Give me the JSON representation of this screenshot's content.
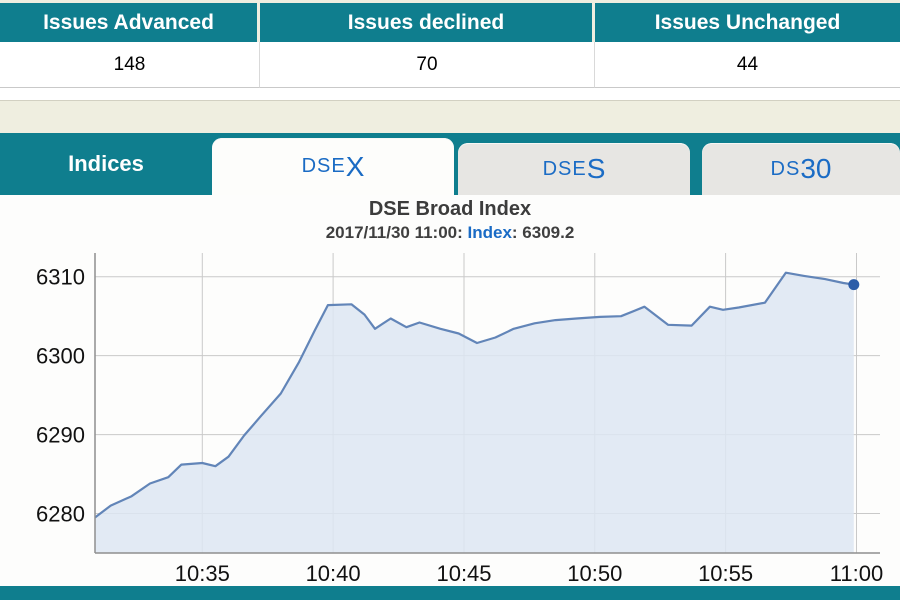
{
  "colors": {
    "teal": "#0f7e8e",
    "page_bg": "#efeee0",
    "tab_text_blue": "#1b6cc5",
    "line_color": "#6285b8",
    "fill_color": "#dde6f2",
    "marker_color": "#2d5da8"
  },
  "stats": {
    "columns": [
      {
        "header": "Issues Advanced",
        "value": "148"
      },
      {
        "header": "Issues declined",
        "value": "70"
      },
      {
        "header": "Issues Unchanged",
        "value": "44"
      }
    ]
  },
  "tabs": {
    "section_label": "Indices",
    "items": [
      {
        "prefix": "DSE",
        "suffix": "X",
        "active": true
      },
      {
        "prefix": "DSE",
        "suffix": "S",
        "active": false
      },
      {
        "prefix": "DS",
        "suffix": "30",
        "active": false
      }
    ]
  },
  "chart": {
    "title": "DSE Broad Index",
    "subtitle": {
      "prefix": "2017/11/30 11:00: ",
      "label": "Index",
      "value": ": 6309.2"
    }
  },
  "chart_data": {
    "type": "area",
    "title": "DSE Broad Index",
    "subtitle": "2017/11/30 11:00: Index: 6309.2",
    "x_unit": "minutes since 00:00",
    "xlim": [
      630.9,
      660.9
    ],
    "ylim": [
      6275,
      6313
    ],
    "x_ticks": [
      {
        "t": 635,
        "label": "10:35"
      },
      {
        "t": 640,
        "label": "10:40"
      },
      {
        "t": 645,
        "label": "10:45"
      },
      {
        "t": 650,
        "label": "10:50"
      },
      {
        "t": 655,
        "label": "10:55"
      },
      {
        "t": 660,
        "label": "11:00"
      }
    ],
    "y_ticks": [
      6280,
      6290,
      6300,
      6310
    ],
    "series": [
      {
        "name": "Index",
        "points": [
          [
            630.9,
            6279.5
          ],
          [
            631.5,
            6281.0
          ],
          [
            632.3,
            6282.2
          ],
          [
            633.0,
            6283.8
          ],
          [
            633.7,
            6284.6
          ],
          [
            634.2,
            6286.2
          ],
          [
            635.0,
            6286.4
          ],
          [
            635.5,
            6286.0
          ],
          [
            636.0,
            6287.2
          ],
          [
            636.6,
            6289.9
          ],
          [
            637.2,
            6292.2
          ],
          [
            638.0,
            6295.2
          ],
          [
            638.7,
            6299.2
          ],
          [
            639.3,
            6303.2
          ],
          [
            639.8,
            6306.4
          ],
          [
            640.7,
            6306.5
          ],
          [
            641.2,
            6305.2
          ],
          [
            641.6,
            6303.4
          ],
          [
            642.2,
            6304.7
          ],
          [
            642.8,
            6303.6
          ],
          [
            643.3,
            6304.2
          ],
          [
            644.1,
            6303.4
          ],
          [
            644.8,
            6302.8
          ],
          [
            645.5,
            6301.6
          ],
          [
            646.2,
            6302.3
          ],
          [
            646.9,
            6303.4
          ],
          [
            647.7,
            6304.1
          ],
          [
            648.5,
            6304.5
          ],
          [
            649.3,
            6304.7
          ],
          [
            650.2,
            6304.9
          ],
          [
            651.0,
            6305.0
          ],
          [
            651.9,
            6306.2
          ],
          [
            652.8,
            6303.9
          ],
          [
            653.7,
            6303.8
          ],
          [
            654.4,
            6306.2
          ],
          [
            654.9,
            6305.8
          ],
          [
            655.5,
            6306.1
          ],
          [
            656.5,
            6306.7
          ],
          [
            657.3,
            6310.5
          ],
          [
            658.0,
            6310.1
          ],
          [
            658.8,
            6309.7
          ],
          [
            659.5,
            6309.2
          ],
          [
            659.9,
            6309.0
          ]
        ]
      }
    ],
    "last_point": {
      "time": "11:00",
      "value": 6309.2
    },
    "grid": true,
    "legend": "none",
    "line_color": "#6285b8",
    "fill_color": "#dde6f2",
    "marker_color": "#2d5da8"
  }
}
